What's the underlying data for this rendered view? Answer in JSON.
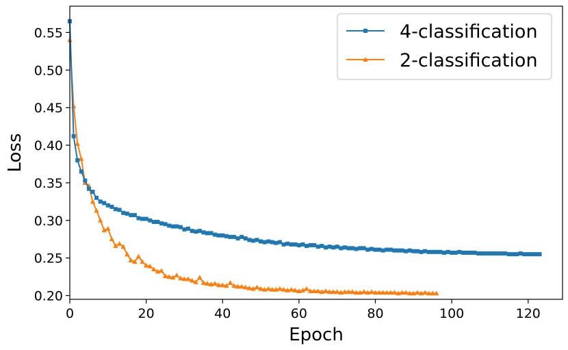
{
  "chart_data": {
    "type": "line",
    "title": "",
    "xlabel": "Epoch",
    "ylabel": "Loss",
    "xlim": [
      0,
      129
    ],
    "ylim": [
      0.195,
      0.585
    ],
    "xticks": [
      "0",
      "20",
      "40",
      "60",
      "80",
      "100",
      "120"
    ],
    "yticks": [
      "0.20",
      "0.25",
      "0.30",
      "0.35",
      "0.40",
      "0.45",
      "0.50",
      "0.55"
    ],
    "grid": false,
    "legend_position": "top-right",
    "series": [
      {
        "name": "4-classification",
        "color": "#1f77b4",
        "marker": "square",
        "x": [
          0,
          1,
          2,
          3,
          4,
          5,
          6,
          7,
          8,
          9,
          10,
          11,
          12,
          13,
          14,
          15,
          16,
          17,
          18,
          19,
          20,
          21,
          22,
          23,
          24,
          25,
          26,
          27,
          28,
          29,
          30,
          31,
          32,
          33,
          34,
          35,
          36,
          37,
          38,
          39,
          40,
          41,
          42,
          43,
          44,
          45,
          46,
          47,
          48,
          49,
          50,
          51,
          52,
          53,
          54,
          55,
          56,
          57,
          58,
          59,
          60,
          61,
          62,
          63,
          64,
          65,
          66,
          67,
          68,
          69,
          70,
          71,
          72,
          73,
          74,
          75,
          76,
          77,
          78,
          79,
          80,
          81,
          82,
          83,
          84,
          85,
          86,
          87,
          88,
          89,
          90,
          91,
          92,
          93,
          94,
          95,
          96,
          97,
          98,
          99,
          100,
          101,
          102,
          103,
          104,
          105,
          106,
          107,
          108,
          109,
          110,
          111,
          112,
          113,
          114,
          115,
          116,
          117,
          118,
          119,
          120,
          121,
          122,
          123
        ],
        "y": [
          0.565,
          0.412,
          0.38,
          0.365,
          0.353,
          0.342,
          0.338,
          0.33,
          0.325,
          0.323,
          0.32,
          0.318,
          0.315,
          0.314,
          0.31,
          0.309,
          0.307,
          0.307,
          0.303,
          0.302,
          0.302,
          0.3,
          0.298,
          0.298,
          0.296,
          0.295,
          0.293,
          0.292,
          0.292,
          0.291,
          0.288,
          0.289,
          0.286,
          0.285,
          0.286,
          0.284,
          0.283,
          0.283,
          0.281,
          0.28,
          0.28,
          0.279,
          0.278,
          0.278,
          0.276,
          0.278,
          0.276,
          0.274,
          0.273,
          0.274,
          0.272,
          0.271,
          0.272,
          0.271,
          0.27,
          0.271,
          0.268,
          0.269,
          0.268,
          0.268,
          0.267,
          0.268,
          0.266,
          0.267,
          0.267,
          0.265,
          0.266,
          0.264,
          0.265,
          0.264,
          0.265,
          0.263,
          0.264,
          0.263,
          0.263,
          0.262,
          0.263,
          0.263,
          0.261,
          0.262,
          0.261,
          0.261,
          0.26,
          0.261,
          0.261,
          0.26,
          0.26,
          0.26,
          0.259,
          0.26,
          0.259,
          0.259,
          0.258,
          0.259,
          0.258,
          0.258,
          0.258,
          0.258,
          0.257,
          0.258,
          0.257,
          0.257,
          0.258,
          0.257,
          0.257,
          0.257,
          0.257,
          0.256,
          0.256,
          0.256,
          0.256,
          0.256,
          0.256,
          0.256,
          0.256,
          0.255,
          0.255,
          0.255,
          0.256,
          0.255,
          0.255,
          0.255,
          0.255,
          0.255
        ]
      },
      {
        "name": "2-classification",
        "color": "#ff7f0e",
        "marker": "triangle",
        "x": [
          0,
          1,
          2,
          3,
          4,
          5,
          6,
          7,
          8,
          9,
          10,
          11,
          12,
          13,
          14,
          15,
          16,
          17,
          18,
          19,
          20,
          21,
          22,
          23,
          24,
          25,
          26,
          27,
          28,
          29,
          30,
          31,
          32,
          33,
          34,
          35,
          36,
          37,
          38,
          39,
          40,
          41,
          42,
          43,
          44,
          45,
          46,
          47,
          48,
          49,
          50,
          51,
          52,
          53,
          54,
          55,
          56,
          57,
          58,
          59,
          60,
          61,
          62,
          63,
          64,
          65,
          66,
          67,
          68,
          69,
          70,
          71,
          72,
          73,
          74,
          75,
          76,
          77,
          78,
          79,
          80,
          81,
          82,
          83,
          84,
          85,
          86,
          87,
          88,
          89,
          90,
          91,
          92,
          93,
          94,
          95,
          96
        ],
        "y": [
          0.54,
          0.452,
          0.402,
          0.382,
          0.35,
          0.346,
          0.325,
          0.313,
          0.3,
          0.287,
          0.289,
          0.275,
          0.266,
          0.269,
          0.265,
          0.255,
          0.247,
          0.245,
          0.252,
          0.245,
          0.24,
          0.239,
          0.235,
          0.232,
          0.233,
          0.226,
          0.225,
          0.224,
          0.227,
          0.223,
          0.222,
          0.222,
          0.22,
          0.218,
          0.224,
          0.217,
          0.216,
          0.215,
          0.216,
          0.214,
          0.214,
          0.213,
          0.217,
          0.213,
          0.212,
          0.212,
          0.211,
          0.21,
          0.209,
          0.211,
          0.209,
          0.208,
          0.209,
          0.208,
          0.208,
          0.209,
          0.208,
          0.207,
          0.208,
          0.207,
          0.206,
          0.207,
          0.209,
          0.206,
          0.206,
          0.206,
          0.205,
          0.206,
          0.205,
          0.205,
          0.205,
          0.204,
          0.205,
          0.205,
          0.205,
          0.204,
          0.204,
          0.205,
          0.204,
          0.205,
          0.204,
          0.204,
          0.204,
          0.204,
          0.204,
          0.204,
          0.203,
          0.204,
          0.204,
          0.203,
          0.203,
          0.204,
          0.203,
          0.204,
          0.203,
          0.203,
          0.203
        ]
      }
    ]
  }
}
